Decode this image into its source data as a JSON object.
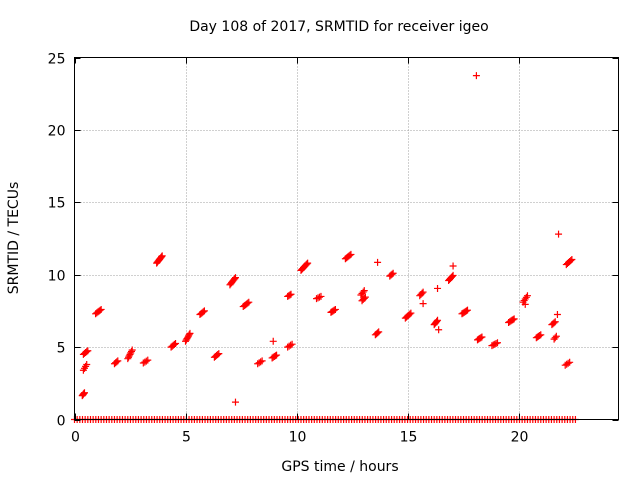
{
  "chart_data": {
    "type": "scatter",
    "title": "Day 108 of 2017, SRMTID for receiver igeo",
    "xlabel": "GPS time / hours",
    "ylabel": "SRMTID / TECUs",
    "xlim": [
      0,
      24.5
    ],
    "ylim": [
      0,
      25
    ],
    "xticks": [
      0,
      5,
      10,
      15,
      20
    ],
    "yticks": [
      0,
      5,
      10,
      15,
      20,
      25
    ],
    "xtick_labels": [
      "0",
      "5",
      "10",
      "15",
      "20"
    ],
    "ytick_labels": [
      "0",
      "5",
      "10",
      "15",
      "20",
      "25"
    ],
    "grid": true,
    "marker": "plus",
    "color": "#ff0000",
    "zero_band": {
      "x_start": 0.0,
      "x_end": 22.6,
      "step": 0.12,
      "value": 0
    },
    "clusters": [
      {
        "x": [
          0.35,
          0.45
        ],
        "y": [
          1.65,
          1.85
        ],
        "n": 5
      },
      {
        "x": [
          0.4,
          0.55
        ],
        "y": [
          3.4,
          3.8
        ],
        "n": 4
      },
      {
        "x": [
          0.4,
          0.6
        ],
        "y": [
          4.5,
          4.75
        ],
        "n": 5
      },
      {
        "x": [
          0.95,
          1.2
        ],
        "y": [
          7.3,
          7.6
        ],
        "n": 6
      },
      {
        "x": [
          1.8,
          1.95
        ],
        "y": [
          3.85,
          4.05
        ],
        "n": 4
      },
      {
        "x": [
          2.4,
          2.6
        ],
        "y": [
          4.2,
          4.8
        ],
        "n": 7
      },
      {
        "x": [
          3.1,
          3.3
        ],
        "y": [
          3.9,
          4.1
        ],
        "n": 4
      },
      {
        "x": [
          3.7,
          3.95
        ],
        "y": [
          10.8,
          11.3
        ],
        "n": 9
      },
      {
        "x": [
          4.35,
          4.55
        ],
        "y": [
          5.0,
          5.25
        ],
        "n": 5
      },
      {
        "x": [
          5.0,
          5.2
        ],
        "y": [
          5.4,
          5.95
        ],
        "n": 7
      },
      {
        "x": [
          5.65,
          5.85
        ],
        "y": [
          7.25,
          7.5
        ],
        "n": 5
      },
      {
        "x": [
          6.3,
          6.5
        ],
        "y": [
          4.3,
          4.55
        ],
        "n": 5
      },
      {
        "x": [
          7.0,
          7.25
        ],
        "y": [
          9.3,
          9.8
        ],
        "n": 8
      },
      {
        "x": [
          7.6,
          7.85
        ],
        "y": [
          7.8,
          8.1
        ],
        "n": 6
      },
      {
        "x": [
          8.25,
          8.45
        ],
        "y": [
          3.85,
          4.05
        ],
        "n": 4
      },
      {
        "x": [
          8.9,
          9.1
        ],
        "y": [
          4.25,
          4.45
        ],
        "n": 5
      },
      {
        "x": [
          9.6,
          9.8
        ],
        "y": [
          5.0,
          5.2
        ],
        "n": 4
      },
      {
        "x": [
          9.6,
          9.75
        ],
        "y": [
          8.5,
          8.65
        ],
        "n": 4
      },
      {
        "x": [
          10.2,
          10.5
        ],
        "y": [
          10.3,
          10.8
        ],
        "n": 9
      },
      {
        "x": [
          10.9,
          11.1
        ],
        "y": [
          8.35,
          8.5
        ],
        "n": 4
      },
      {
        "x": [
          11.55,
          11.75
        ],
        "y": [
          7.4,
          7.6
        ],
        "n": 5
      },
      {
        "x": [
          12.2,
          12.45
        ],
        "y": [
          11.1,
          11.4
        ],
        "n": 6
      },
      {
        "x": [
          12.9,
          13.05
        ],
        "y": [
          8.6,
          8.9
        ],
        "n": 4
      },
      {
        "x": [
          12.95,
          13.1
        ],
        "y": [
          8.2,
          8.45
        ],
        "n": 4
      },
      {
        "x": [
          13.55,
          13.7
        ],
        "y": [
          5.85,
          6.05
        ],
        "n": 4
      },
      {
        "x": [
          14.2,
          14.35
        ],
        "y": [
          9.9,
          10.1
        ],
        "n": 4
      },
      {
        "x": [
          14.9,
          15.15
        ],
        "y": [
          7.0,
          7.35
        ],
        "n": 6
      },
      {
        "x": [
          15.55,
          15.7
        ],
        "y": [
          8.55,
          8.8
        ],
        "n": 4
      },
      {
        "x": [
          16.2,
          16.35
        ],
        "y": [
          6.55,
          6.85
        ],
        "n": 5
      },
      {
        "x": [
          16.85,
          17.05
        ],
        "y": [
          9.6,
          9.95
        ],
        "n": 6
      },
      {
        "x": [
          17.45,
          17.7
        ],
        "y": [
          7.3,
          7.55
        ],
        "n": 6
      },
      {
        "x": [
          18.15,
          18.35
        ],
        "y": [
          5.5,
          5.7
        ],
        "n": 5
      },
      {
        "x": [
          18.8,
          19.05
        ],
        "y": [
          5.1,
          5.3
        ],
        "n": 5
      },
      {
        "x": [
          19.55,
          19.8
        ],
        "y": [
          6.7,
          6.95
        ],
        "n": 6
      },
      {
        "x": [
          20.2,
          20.4
        ],
        "y": [
          8.1,
          8.55
        ],
        "n": 5
      },
      {
        "x": [
          20.8,
          21.0
        ],
        "y": [
          5.65,
          5.85
        ],
        "n": 5
      },
      {
        "x": [
          21.5,
          21.65
        ],
        "y": [
          6.55,
          6.75
        ],
        "n": 4
      },
      {
        "x": [
          21.6,
          21.7
        ],
        "y": [
          5.55,
          5.75
        ],
        "n": 3
      },
      {
        "x": [
          22.1,
          22.3
        ],
        "y": [
          3.75,
          3.95
        ],
        "n": 4
      },
      {
        "x": [
          22.15,
          22.4
        ],
        "y": [
          10.7,
          11.05
        ],
        "n": 6
      }
    ],
    "points": [
      {
        "x": 7.25,
        "y": 1.2
      },
      {
        "x": 8.95,
        "y": 5.4
      },
      {
        "x": 13.65,
        "y": 10.85
      },
      {
        "x": 15.7,
        "y": 8.0
      },
      {
        "x": 16.35,
        "y": 9.05
      },
      {
        "x": 16.4,
        "y": 6.2
      },
      {
        "x": 17.05,
        "y": 10.6
      },
      {
        "x": 18.1,
        "y": 23.75
      },
      {
        "x": 20.3,
        "y": 7.95
      },
      {
        "x": 21.75,
        "y": 7.25
      },
      {
        "x": 21.8,
        "y": 12.8
      }
    ]
  }
}
